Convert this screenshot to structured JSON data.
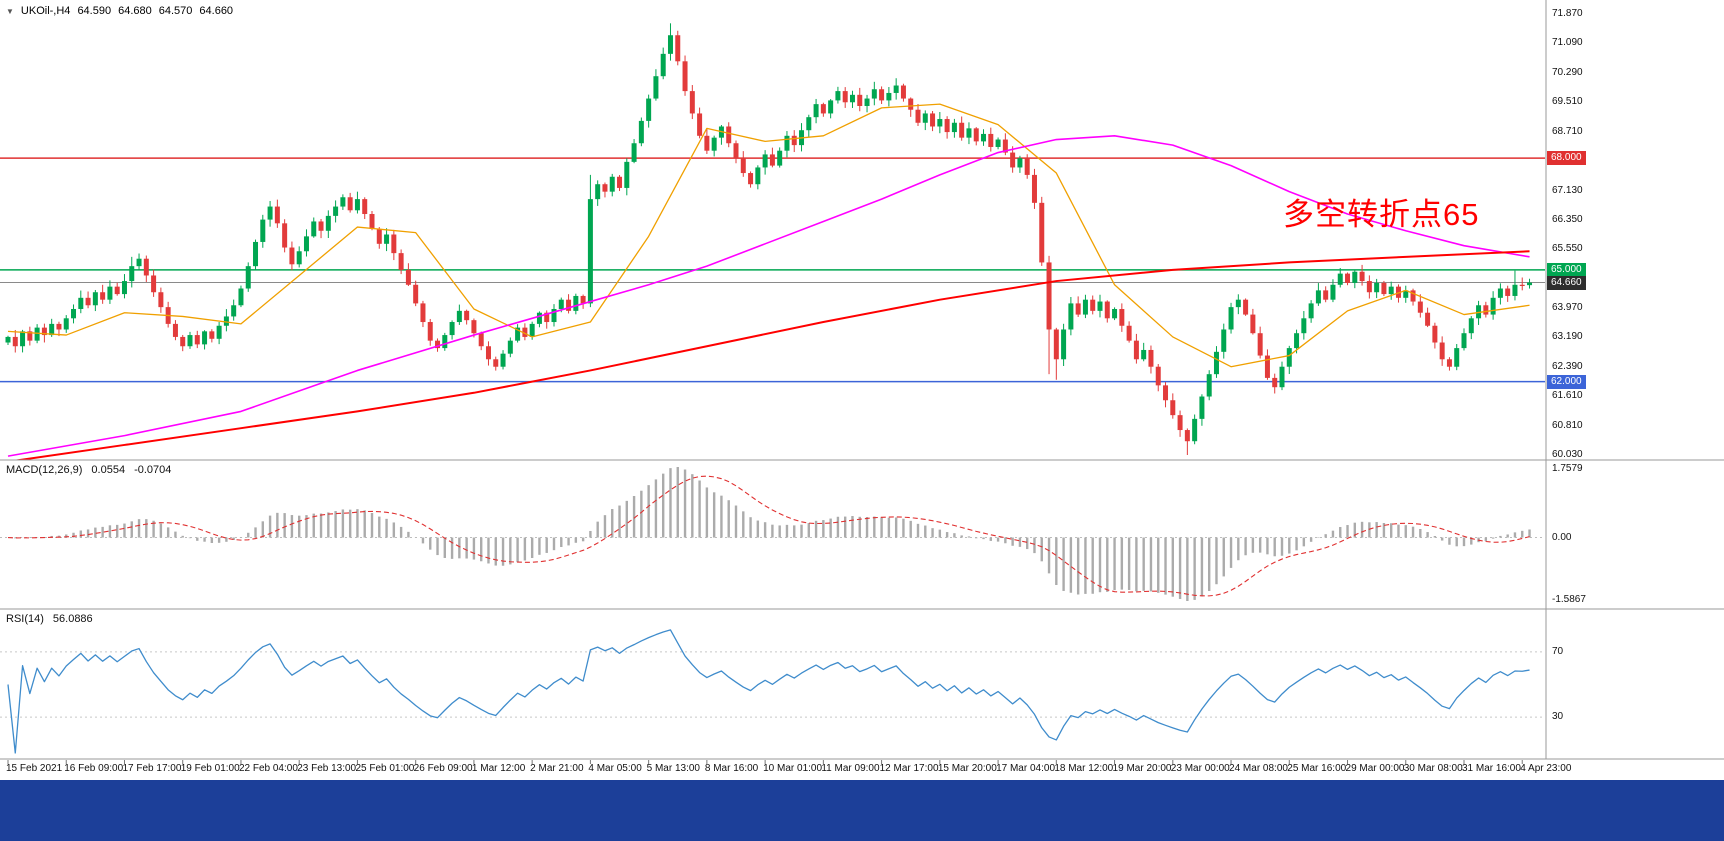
{
  "header": {
    "symbol_period": "UKOil-,H4",
    "open": "64.590",
    "high": "64.680",
    "low": "64.570",
    "close": "64.660"
  },
  "annotation": {
    "text": "多空转折点65",
    "color": "#ff0000"
  },
  "colors": {
    "background": "#ffffff",
    "bull": "#00a651",
    "bear": "#e23b3b",
    "ma_fast": "#f0a000",
    "ma_mid": "#ff00ff",
    "ma_slow": "#ff0000",
    "level_red": "#e03030",
    "level_green": "#00a651",
    "level_blue": "#3c64d8",
    "macd_hist": "#ababab",
    "macd_signal": "#e03030",
    "rsi_line": "#3f8ccc",
    "separator": "#9a9a9a",
    "taskbar": "#1c3f99",
    "current_line": "#8a8a8a"
  },
  "price_axis": {
    "labels": [
      "71.870",
      "71.090",
      "70.290",
      "69.510",
      "68.710",
      "67.130",
      "66.350",
      "65.550",
      "63.970",
      "63.190",
      "62.390",
      "61.610",
      "60.810",
      "60.030"
    ],
    "level_tags": [
      {
        "label": "68.000",
        "price": 68.0,
        "bg": "#e03030"
      },
      {
        "label": "65.000",
        "price": 65.0,
        "bg": "#00a651"
      },
      {
        "label": "62.000",
        "price": 62.0,
        "bg": "#3c64d8"
      }
    ],
    "current_tag": {
      "label": "64.660",
      "price": 64.66,
      "bg": "#2e2e2e"
    }
  },
  "time_axis": {
    "bars_per_label": 8,
    "labels": [
      "15 Feb 2021",
      "16 Feb 09:00",
      "17 Feb 17:00",
      "19 Feb 01:00",
      "22 Feb 04:00",
      "23 Feb 13:00",
      "25 Feb 01:00",
      "26 Feb 09:00",
      "1 Mar 12:00",
      "2 Mar 21:00",
      "4 Mar 05:00",
      "5 Mar 13:00",
      "8 Mar 16:00",
      "10 Mar 01:00",
      "11 Mar 09:00",
      "12 Mar 17:00",
      "15 Mar 20:00",
      "17 Mar 04:00",
      "18 Mar 12:00",
      "19 Mar 20:00",
      "23 Mar 00:00",
      "24 Mar 08:00",
      "25 Mar 16:00",
      "29 Mar 00:00",
      "30 Mar 08:00",
      "31 Mar 16:00",
      "4 Apr 23:00"
    ]
  },
  "chart_data": {
    "type": "candlestick",
    "symbol": "UKOil-",
    "timeframe": "H4",
    "title": "UKOil- H4 candlestick chart with MACD and RSI",
    "ylim": [
      60.03,
      71.87
    ],
    "current_price": 64.66,
    "first_open": 63.05,
    "closes": [
      63.2,
      62.95,
      63.35,
      63.1,
      63.45,
      63.25,
      63.55,
      63.4,
      63.7,
      63.95,
      64.25,
      64.05,
      64.4,
      64.2,
      64.55,
      64.35,
      64.7,
      65.1,
      65.3,
      64.85,
      64.4,
      64.0,
      63.55,
      63.2,
      62.95,
      63.25,
      63.0,
      63.35,
      63.15,
      63.5,
      63.75,
      64.05,
      64.5,
      65.1,
      65.75,
      66.35,
      66.7,
      66.25,
      65.6,
      65.15,
      65.5,
      65.9,
      66.3,
      66.05,
      66.45,
      66.7,
      66.95,
      66.6,
      66.9,
      66.5,
      66.1,
      65.7,
      65.95,
      65.45,
      65.0,
      64.6,
      64.1,
      63.6,
      63.1,
      62.9,
      63.25,
      63.6,
      63.9,
      63.65,
      63.3,
      62.95,
      62.6,
      62.4,
      62.75,
      63.1,
      63.45,
      63.2,
      63.55,
      63.85,
      63.6,
      63.95,
      64.2,
      63.9,
      64.3,
      64.1,
      66.9,
      67.3,
      67.1,
      67.5,
      67.2,
      67.9,
      68.4,
      69.0,
      69.6,
      70.2,
      70.8,
      71.3,
      70.6,
      69.8,
      69.2,
      68.6,
      68.2,
      68.55,
      68.85,
      68.4,
      68.0,
      67.6,
      67.3,
      67.75,
      68.1,
      67.8,
      68.2,
      68.6,
      68.35,
      68.75,
      69.1,
      69.45,
      69.2,
      69.55,
      69.8,
      69.5,
      69.7,
      69.4,
      69.6,
      69.85,
      69.55,
      69.75,
      69.95,
      69.6,
      69.3,
      68.95,
      69.2,
      68.85,
      69.05,
      68.7,
      68.95,
      68.55,
      68.8,
      68.45,
      68.65,
      68.3,
      68.5,
      68.15,
      67.75,
      68.0,
      67.55,
      66.8,
      65.2,
      63.4,
      62.6,
      63.4,
      64.1,
      63.8,
      64.2,
      63.9,
      64.15,
      63.7,
      63.95,
      63.5,
      63.1,
      62.6,
      62.85,
      62.4,
      61.9,
      61.5,
      61.1,
      60.7,
      60.4,
      61.0,
      61.6,
      62.2,
      62.8,
      63.4,
      64.0,
      64.2,
      63.8,
      63.3,
      62.7,
      62.1,
      61.85,
      62.4,
      62.9,
      63.3,
      63.7,
      64.1,
      64.45,
      64.2,
      64.6,
      64.9,
      64.65,
      64.95,
      64.7,
      64.4,
      64.65,
      64.35,
      64.55,
      64.25,
      64.45,
      64.15,
      63.85,
      63.5,
      63.05,
      62.6,
      62.4,
      62.9,
      63.3,
      63.7,
      64.05,
      63.8,
      64.25,
      64.5,
      64.3,
      64.6,
      64.59,
      64.66
    ],
    "wick_overrides": {
      "17": {
        "high": 65.35
      },
      "36": {
        "high": 66.85
      },
      "48": {
        "high": 67.1
      },
      "80": {
        "high": 67.55,
        "low": 64.0
      },
      "91": {
        "high": 71.62
      },
      "143": {
        "low": 62.2
      },
      "144": {
        "low": 62.05
      },
      "162": {
        "low": 60.03
      },
      "183": {
        "high": 65.05
      },
      "207": {
        "high": 64.98
      }
    },
    "levels": [
      {
        "price": 68.0,
        "color": "#e03030",
        "label": "68.000"
      },
      {
        "price": 65.0,
        "color": "#00a651",
        "label": "65.000"
      },
      {
        "price": 62.0,
        "color": "#3c64d8",
        "label": "62.000"
      }
    ],
    "moving_averages": [
      {
        "name": "ma-fast-orange",
        "color": "#f0a000",
        "width": 1.3,
        "points": [
          [
            0,
            63.35
          ],
          [
            8,
            63.25
          ],
          [
            16,
            63.85
          ],
          [
            24,
            63.75
          ],
          [
            32,
            63.55
          ],
          [
            40,
            64.85
          ],
          [
            48,
            66.15
          ],
          [
            56,
            66.0
          ],
          [
            64,
            63.95
          ],
          [
            72,
            63.2
          ],
          [
            80,
            63.6
          ],
          [
            88,
            65.9
          ],
          [
            96,
            68.8
          ],
          [
            104,
            68.45
          ],
          [
            112,
            68.6
          ],
          [
            120,
            69.35
          ],
          [
            128,
            69.45
          ],
          [
            136,
            68.9
          ],
          [
            144,
            67.6
          ],
          [
            152,
            64.6
          ],
          [
            160,
            63.2
          ],
          [
            168,
            62.4
          ],
          [
            176,
            62.7
          ],
          [
            184,
            63.9
          ],
          [
            192,
            64.45
          ],
          [
            200,
            63.8
          ],
          [
            209,
            64.05
          ]
        ]
      },
      {
        "name": "ma-mid-magenta",
        "color": "#ff00ff",
        "width": 1.6,
        "points": [
          [
            0,
            60.0
          ],
          [
            16,
            60.55
          ],
          [
            32,
            61.2
          ],
          [
            48,
            62.3
          ],
          [
            64,
            63.25
          ],
          [
            80,
            64.15
          ],
          [
            88,
            64.6
          ],
          [
            96,
            65.1
          ],
          [
            104,
            65.7
          ],
          [
            112,
            66.3
          ],
          [
            120,
            66.9
          ],
          [
            128,
            67.55
          ],
          [
            136,
            68.15
          ],
          [
            144,
            68.5
          ],
          [
            152,
            68.6
          ],
          [
            160,
            68.35
          ],
          [
            168,
            67.8
          ],
          [
            176,
            67.1
          ],
          [
            184,
            66.5
          ],
          [
            192,
            66.05
          ],
          [
            200,
            65.65
          ],
          [
            209,
            65.35
          ]
        ]
      },
      {
        "name": "ma-slow-red",
        "color": "#ff0000",
        "width": 2,
        "points": [
          [
            0,
            59.85
          ],
          [
            16,
            60.3
          ],
          [
            32,
            60.75
          ],
          [
            48,
            61.2
          ],
          [
            64,
            61.7
          ],
          [
            80,
            62.3
          ],
          [
            96,
            62.95
          ],
          [
            112,
            63.6
          ],
          [
            128,
            64.2
          ],
          [
            144,
            64.7
          ],
          [
            160,
            65.0
          ],
          [
            176,
            65.2
          ],
          [
            192,
            65.35
          ],
          [
            209,
            65.5
          ]
        ]
      }
    ],
    "indicators": {
      "macd": {
        "name": "MACD(12,26,9)",
        "value_main": "0.0554",
        "value_signal": "-0.0704",
        "params": [
          12,
          26,
          9
        ],
        "axis_labels": [
          "1.7579",
          "0.00",
          "-1.5867"
        ]
      },
      "rsi": {
        "name": "RSI(14)",
        "value_text": "56.0886",
        "period": 14,
        "levels": [
          70,
          30
        ],
        "axis_labels": [
          "70",
          "30"
        ]
      }
    }
  }
}
